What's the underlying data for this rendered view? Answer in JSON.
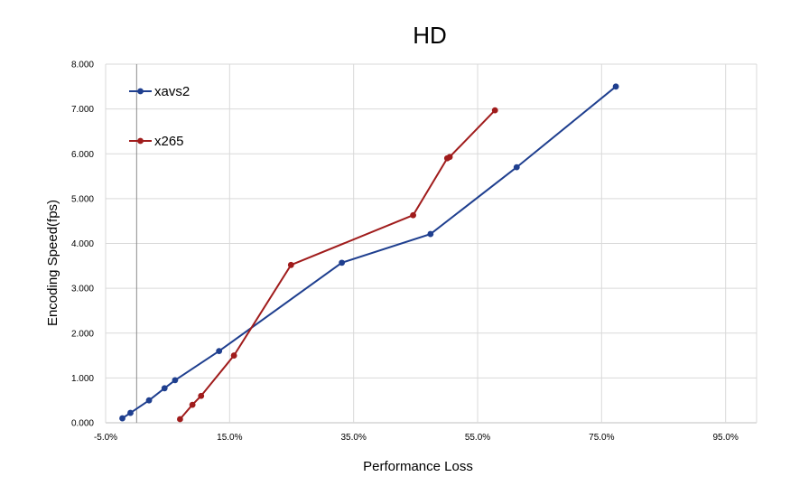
{
  "chart_data": {
    "type": "line",
    "title": "HD",
    "xlabel": "Performance Loss",
    "ylabel": "Encoding Speed(fps)",
    "xlim": [
      -0.05,
      1.0
    ],
    "ylim": [
      0,
      8
    ],
    "x_ticks": [
      -0.05,
      0.15,
      0.35,
      0.55,
      0.75,
      0.95
    ],
    "x_tick_labels": [
      "-5.0%",
      "15.0%",
      "35.0%",
      "55.0%",
      "75.0%",
      "95.0%"
    ],
    "y_ticks": [
      0,
      1,
      2,
      3,
      4,
      5,
      6,
      7,
      8
    ],
    "y_tick_labels": [
      "0.000",
      "1.000",
      "2.000",
      "3.000",
      "4.000",
      "5.000",
      "6.000",
      "7.000",
      "8.000"
    ],
    "grid": true,
    "legend": "top-left",
    "series": [
      {
        "name": "xavs2",
        "color": "#1f3f8f",
        "points": [
          [
            -0.023,
            0.1
          ],
          [
            -0.01,
            0.22
          ],
          [
            0.02,
            0.5
          ],
          [
            0.045,
            0.77
          ],
          [
            0.062,
            0.95
          ],
          [
            0.133,
            1.6
          ],
          [
            0.331,
            3.57
          ],
          [
            0.474,
            4.21
          ],
          [
            0.613,
            5.7
          ],
          [
            0.773,
            7.5
          ]
        ]
      },
      {
        "name": "x265",
        "color": "#a01c1c",
        "points": [
          [
            0.07,
            0.08
          ],
          [
            0.09,
            0.4
          ],
          [
            0.104,
            0.6
          ],
          [
            0.157,
            1.5
          ],
          [
            0.249,
            3.52
          ],
          [
            0.446,
            4.63
          ],
          [
            0.501,
            5.9
          ],
          [
            0.505,
            5.93
          ],
          [
            0.578,
            6.97
          ]
        ]
      }
    ]
  }
}
